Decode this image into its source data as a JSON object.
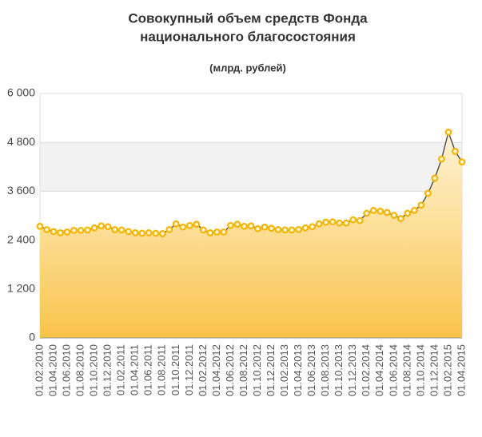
{
  "chart_data": {
    "type": "area",
    "title": [
      "Совокупный объем средств Фонда",
      "национального благосостояния"
    ],
    "subtitle": "(млрд. рублей)",
    "categories": [
      "01.02.2010",
      null,
      "01.04.2010",
      null,
      "01.06.2010",
      null,
      "01.08.2010",
      null,
      "01.10.2010",
      null,
      "01.12.2010",
      null,
      "01.02.2011",
      null,
      "01.04.2011",
      null,
      "01.06.2011",
      null,
      "01.08.2011",
      null,
      "01.10.2011",
      null,
      "01.12.2011",
      null,
      "01.02.2012",
      null,
      "01.04.2012",
      null,
      "01.06.2012",
      null,
      "01.08.2012",
      null,
      "01.10.2012",
      null,
      "01.12.2012",
      null,
      "01.02.2013",
      null,
      "01.04.2013",
      null,
      "01.06.2013",
      null,
      "01.08.2013",
      null,
      "01.10.2013",
      null,
      "01.12.2013",
      null,
      "01.02.2014",
      null,
      "01.04.2014",
      null,
      "01.06.2014",
      null,
      "01.08.2014",
      null,
      "01.10.2014",
      null,
      "01.12.2014",
      null,
      "01.02.2015",
      null,
      "01.04.2015"
    ],
    "values": [
      2740,
      2660,
      2610,
      2580,
      2600,
      2640,
      2640,
      2650,
      2700,
      2750,
      2730,
      2660,
      2650,
      2610,
      2580,
      2570,
      2580,
      2570,
      2560,
      2660,
      2800,
      2720,
      2760,
      2790,
      2650,
      2580,
      2600,
      2600,
      2760,
      2790,
      2740,
      2750,
      2680,
      2720,
      2690,
      2660,
      2650,
      2650,
      2660,
      2700,
      2730,
      2800,
      2840,
      2850,
      2820,
      2820,
      2900,
      2880,
      3060,
      3130,
      3110,
      3080,
      3010,
      2930,
      3060,
      3130,
      3260,
      3550,
      3920,
      4390,
      5050,
      4580,
      4320
    ],
    "color": "#f5b400",
    "line_color": "#555555",
    "ylim": [
      0,
      6000
    ],
    "yticks": [
      {
        "value": 0,
        "label": "0"
      },
      {
        "value": 1200,
        "label": "1 200"
      },
      {
        "value": 2400,
        "label": "2 400"
      },
      {
        "value": 3600,
        "label": "3 600"
      },
      {
        "value": 4800,
        "label": "4 800"
      },
      {
        "value": 6000,
        "label": "6 000"
      }
    ],
    "grid": true
  }
}
